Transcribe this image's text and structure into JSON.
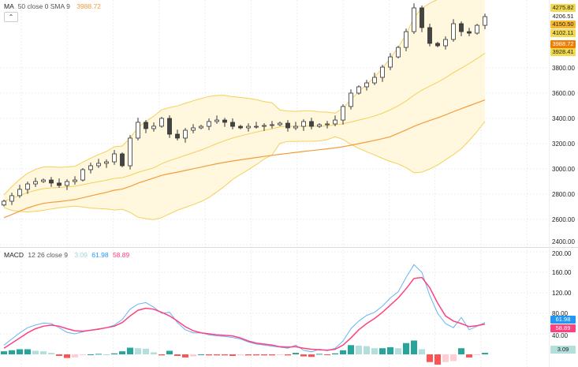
{
  "price_legend": {
    "name": "MA",
    "params": "50 close 0 SMA 9",
    "value": "3988.72",
    "value_color": "#f39c3a"
  },
  "macd_legend": {
    "name": "MACD",
    "params": "12 26 close 9",
    "hist": "3.09",
    "macd": "61.98",
    "signal": "58.89"
  },
  "collapse_icon": "chevron-up-icon",
  "colors": {
    "ma50": "#f39c3a",
    "bands": "#f5cf5a",
    "band_fill": "#fff6d6",
    "macd": "#64b5f6",
    "signal": "#ff4081",
    "hist_up_strong": "#26a69a",
    "hist_up_weak": "#b2dfdb",
    "hist_dn_strong": "#ff5252",
    "hist_dn_weak": "#ffcdd2"
  },
  "price_tags": [
    {
      "text": "4275.82",
      "value": 4275.82,
      "bg": "#f2d94e",
      "fg": "#222"
    },
    {
      "text": "4206.51",
      "value": 4206.51,
      "bg": "#ffffff",
      "fg": "#222"
    },
    {
      "text": "4150.50",
      "value": 4150.5,
      "bg": "#f7b731",
      "fg": "#222"
    },
    {
      "text": "4102.11",
      "value": 4102.11,
      "bg": "#f2d94e",
      "fg": "#222"
    },
    {
      "text": "3988.72",
      "value": 3988.72,
      "bg": "#ef7d00",
      "fg": "#fff"
    },
    {
      "text": "3928.41",
      "value": 3928.41,
      "bg": "#f2d94e",
      "fg": "#222"
    }
  ],
  "macd_tags": [
    {
      "text": "61.98",
      "value": 61.98,
      "bg": "#2196f3",
      "fg": "#fff"
    },
    {
      "text": "58.89",
      "value": 58.89,
      "bg": "#ff4081",
      "fg": "#fff"
    },
    {
      "text": "3.09",
      "value": 3.09,
      "bg": "#b2dfdb",
      "fg": "#222"
    }
  ],
  "chart_data": [
    {
      "type": "candlestick",
      "title": "",
      "y_ticks": [
        "3800.00",
        "3600.00",
        "3400.00",
        "3200.00",
        "3000.00",
        "2800.00",
        "2600.00",
        "2400.00"
      ],
      "y_tick_values": [
        3800,
        3600,
        3400,
        3200,
        3000,
        2800,
        2600,
        2400
      ],
      "ylim": [
        2400,
        4300
      ],
      "grid": true,
      "close": [
        2744,
        2788,
        2838,
        2881,
        2900,
        2912,
        2888,
        2869,
        2900,
        2912,
        2994,
        3025,
        3044,
        3056,
        3119,
        3025,
        3244,
        3369,
        3319,
        3338,
        3400,
        3275,
        3244,
        3306,
        3325,
        3337,
        3375,
        3387,
        3369,
        3337,
        3325,
        3337,
        3337,
        3344,
        3350,
        3362,
        3325,
        3337,
        3375,
        3337,
        3350,
        3356,
        3387,
        3494,
        3600,
        3650,
        3681,
        3725,
        3806,
        3887,
        3962,
        4087,
        4275,
        4119,
        3994,
        3975,
        4025,
        4150,
        4087,
        4075,
        4137,
        4206
      ],
      "overlays": [
        "MA 50",
        "Bollinger bands"
      ]
    },
    {
      "type": "line",
      "title": "MACD 12 26 close 9",
      "y_ticks": [
        "200.00",
        "160.00",
        "120.00",
        "80.00",
        "40.00"
      ],
      "y_tick_values": [
        200,
        160,
        120,
        80,
        40
      ],
      "ylim": [
        0,
        200
      ],
      "series": [
        {
          "name": "MACD",
          "values": [
            18,
            30,
            42,
            52,
            57,
            61,
            60,
            52,
            43,
            40,
            44,
            47,
            50,
            52,
            57,
            68,
            88,
            98,
            101,
            92,
            80,
            82,
            62,
            48,
            42,
            42,
            38,
            36,
            35,
            33,
            30,
            24,
            20,
            18,
            16,
            14,
            12,
            18,
            8,
            5,
            10,
            7,
            12,
            26,
            50,
            65,
            76,
            82,
            94,
            110,
            122,
            150,
            175,
            160,
            115,
            80,
            60,
            52,
            72,
            48,
            55,
            62
          ]
        },
        {
          "name": "Signal",
          "values": [
            12,
            22,
            32,
            42,
            50,
            55,
            57,
            55,
            50,
            46,
            45,
            47,
            49,
            52,
            55,
            62,
            75,
            86,
            90,
            88,
            82,
            75,
            65,
            54,
            46,
            42,
            40,
            38,
            37,
            36,
            32,
            26,
            22,
            20,
            18,
            15,
            14,
            15,
            12,
            10,
            9,
            8,
            10,
            18,
            32,
            48,
            60,
            70,
            82,
            96,
            110,
            128,
            148,
            150,
            130,
            100,
            75,
            65,
            60,
            54,
            56,
            59
          ]
        }
      ]
    }
  ]
}
